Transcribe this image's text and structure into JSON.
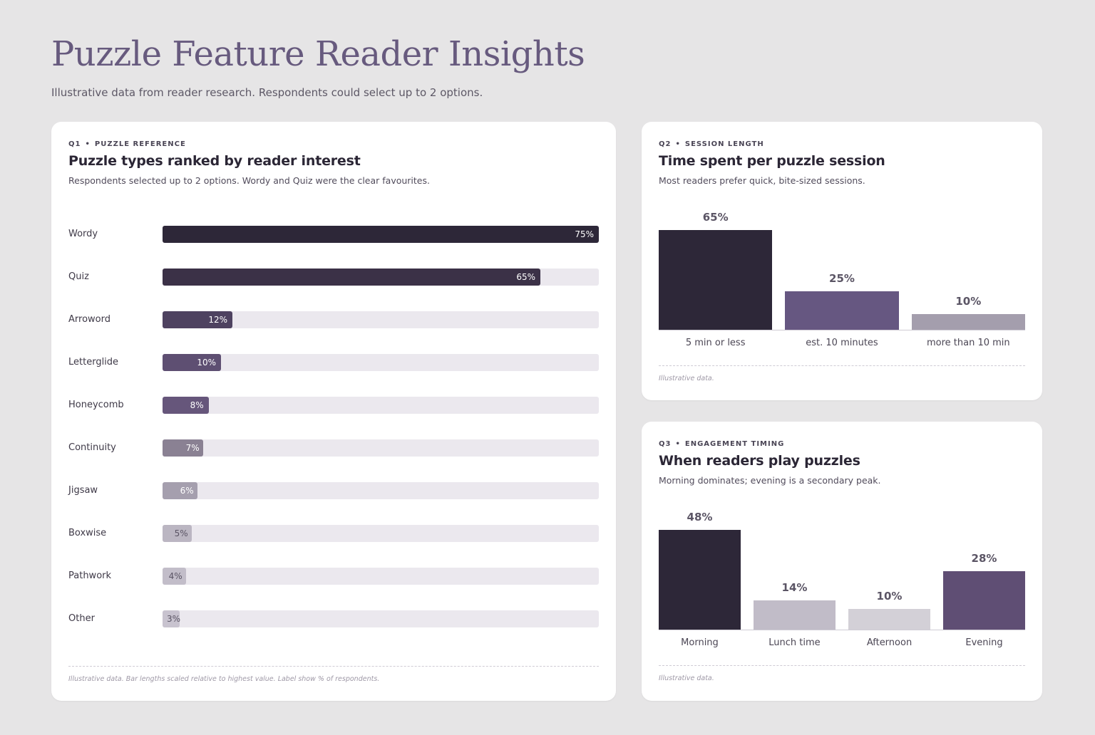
{
  "page": {
    "title": "Puzzle Feature Reader Insights",
    "subtitle": "Illustrative data from reader research. Respondents could select up to 2 options."
  },
  "q1": {
    "eyebrow_num": "Q1",
    "eyebrow_label": "PUZZLE REFERENCE",
    "title": "Puzzle types ranked by reader interest",
    "desc": "Respondents selected up to 2 options. Wordy and Quiz were the clear favourites.",
    "footnote": "Illustrative data. Bar lengths scaled relative to highest value. Label show % of respondents."
  },
  "q2": {
    "eyebrow_num": "Q2",
    "eyebrow_label": "SESSION LENGTH",
    "title": "Time spent per puzzle session",
    "desc": "Most readers prefer quick, bite-sized sessions.",
    "footnote": "Illustrative data."
  },
  "q3": {
    "eyebrow_num": "Q3",
    "eyebrow_label": "ENGAGEMENT TIMING",
    "title": "When readers play puzzles",
    "desc": "Morning dominates; evening is a secondary peak.",
    "footnote": "Illustrative data."
  },
  "chart_data": [
    {
      "id": "q1",
      "type": "bar",
      "orientation": "horizontal",
      "categories": [
        "Wordy",
        "Quiz",
        "Arroword",
        "Letterglide",
        "Honeycomb",
        "Continuity",
        "Jigsaw",
        "Boxwise",
        "Pathwork",
        "Other"
      ],
      "values": [
        75,
        65,
        12,
        10,
        8,
        7,
        6,
        5,
        4,
        3
      ],
      "value_labels": [
        "75%",
        "65%",
        "12%",
        "10%",
        "8%",
        "7%",
        "6%",
        "5%",
        "4%",
        "3%"
      ],
      "colors": [
        "#2d2738",
        "#3b3147",
        "#4e4260",
        "#5e4f72",
        "#66567b",
        "#8a8193",
        "#a59fae",
        "#bbb6c2",
        "#c2bdc9",
        "#c8c3cf"
      ],
      "label_colors": [
        "#ffffff",
        "#ffffff",
        "#ffffff",
        "#ffffff",
        "#ffffff",
        "#ffffff",
        "#ffffff",
        "#5a5464",
        "#5a5464",
        "#5a5464"
      ],
      "xlim": [
        0,
        75
      ],
      "grid": false
    },
    {
      "id": "q2",
      "type": "bar",
      "categories": [
        "5 min or less",
        "est. 10 minutes",
        "more than 10 min"
      ],
      "values": [
        65,
        25,
        10
      ],
      "value_labels": [
        "65%",
        "25%",
        "10%"
      ],
      "colors": [
        "#2d2738",
        "#665781",
        "#a49ead"
      ],
      "ylim": [
        0,
        65
      ],
      "grid": false
    },
    {
      "id": "q3",
      "type": "bar",
      "categories": [
        "Morning",
        "Lunch time",
        "Afternoon",
        "Evening"
      ],
      "values": [
        48,
        14,
        10,
        28
      ],
      "value_labels": [
        "48%",
        "14%",
        "10%",
        "28%"
      ],
      "colors": [
        "#2d2738",
        "#c1bcc8",
        "#d3d0d7",
        "#5f4e74"
      ],
      "ylim": [
        0,
        48
      ],
      "grid": false
    }
  ]
}
